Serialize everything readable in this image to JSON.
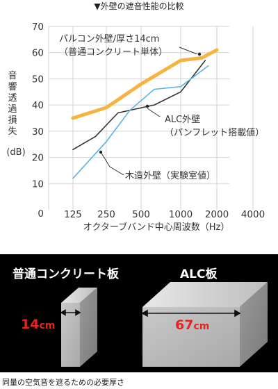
{
  "chart_data": {
    "type": "line",
    "title": "▼外壁の遮音性能の比較",
    "xlabel": "オクターブバンド中心周波数（Hz）",
    "ylabel": "音響透過損失（dB）",
    "ylabel_chars": [
      "音",
      "響",
      "透",
      "過",
      "損",
      "失"
    ],
    "ylabel_unit": "(dB)",
    "categories": [
      "125",
      "250",
      "500",
      "1000",
      "2000",
      "4000"
    ],
    "ylim": [
      0,
      70
    ],
    "yticks": [
      "0",
      "10",
      "20",
      "30",
      "40",
      "50",
      "60",
      "70"
    ],
    "grid": true,
    "series": [
      {
        "key": "precast",
        "color": "#f6b342",
        "x": [
          125,
          250,
          500,
          1000,
          1500,
          2000
        ],
        "values": [
          35,
          39,
          48,
          57,
          58,
          61
        ]
      },
      {
        "key": "alc",
        "color": "#333333",
        "x": [
          125,
          200,
          315,
          630,
          1000,
          1600
        ],
        "values": [
          23,
          28,
          37,
          40,
          45,
          57
        ]
      },
      {
        "key": "wood",
        "color": "#58b4e2",
        "x": [
          125,
          250,
          400,
          630,
          1000,
          1700
        ],
        "values": [
          12,
          26,
          38,
          46,
          47,
          55
        ]
      }
    ],
    "annotations": {
      "precast": [
        "パルコン外壁/厚さ14cm",
        "（普通コンクリート単体）"
      ],
      "alc": [
        "ALC外壁",
        "（パンフレット搭載値）"
      ],
      "wood": [
        "木造外壁（実験室値）"
      ]
    }
  },
  "panel": {
    "left_label": "普通コンクリート板",
    "right_label": "ALC板",
    "left_thickness": "14",
    "right_thickness": "67",
    "unit": "cm"
  },
  "caption": "同量の空気音を遮るための必要厚さ"
}
